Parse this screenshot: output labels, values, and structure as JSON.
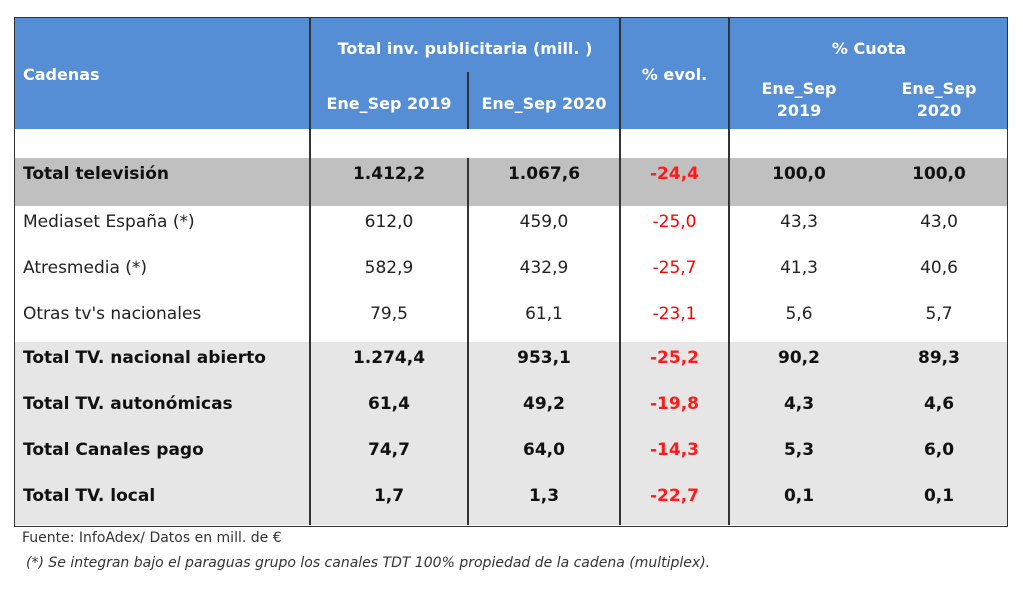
{
  "header": {
    "cadenas": "Cadenas",
    "total_inv": "Total inv. publicitaria (mill. )",
    "ene_sep_2019": "Ene_Sep 2019",
    "ene_sep_2020": "Ene_Sep 2020",
    "evol": "% evol.",
    "cuota": "% Cuota",
    "cuota_2019_l1": "Ene_Sep",
    "cuota_2019_l2": "2019",
    "cuota_2020_l1": "Ene_Sep",
    "cuota_2020_l2": "2020"
  },
  "rows": [
    {
      "name": "Total televisión",
      "v2019": "1.412,2",
      "v2020": "1.067,6",
      "evol": "-24,4",
      "c2019": "100,0",
      "c2020": "100,0"
    },
    {
      "name": "Mediaset España (*)",
      "v2019": "612,0",
      "v2020": "459,0",
      "evol": "-25,0",
      "c2019": "43,3",
      "c2020": "43,0"
    },
    {
      "name": "Atresmedia (*)",
      "v2019": "582,9",
      "v2020": "432,9",
      "evol": "-25,7",
      "c2019": "41,3",
      "c2020": "40,6"
    },
    {
      "name": "Otras tv's nacionales",
      "v2019": "79,5",
      "v2020": "61,1",
      "evol": "-23,1",
      "c2019": "5,6",
      "c2020": "5,7"
    },
    {
      "name": "Total TV. nacional abierto",
      "v2019": "1.274,4",
      "v2020": "953,1",
      "evol": "-25,2",
      "c2019": "90,2",
      "c2020": "89,3"
    },
    {
      "name": "Total TV. autonómicas",
      "v2019": "61,4",
      "v2020": "49,2",
      "evol": "-19,8",
      "c2019": "4,3",
      "c2020": "4,6"
    },
    {
      "name": "Total Canales pago",
      "v2019": "74,7",
      "v2020": "64,0",
      "evol": "-14,3",
      "c2019": "5,3",
      "c2020": "6,0"
    },
    {
      "name": "Total TV. local",
      "v2019": "1,7",
      "v2020": "1,3",
      "evol": "-22,7",
      "c2019": "0,1",
      "c2020": "0,1"
    }
  ],
  "footer": {
    "source": "Fuente: InfoAdex/ Datos en mill. de €",
    "note": "(*) Se integran bajo el paraguas grupo los canales TDT 100% propiedad de la cadena (multiplex)."
  },
  "colors": {
    "header_bg": "#558ed5",
    "total_row_bg": "#c0c0c0",
    "subtotal_row_bg": "#e6e6e6",
    "negative": "#ff0000"
  }
}
